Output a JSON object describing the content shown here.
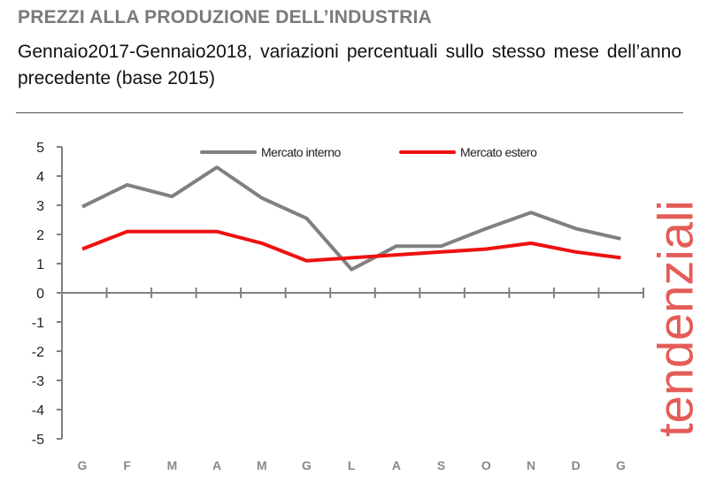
{
  "header": {
    "title": "PREZZI ALLA PRODUZIONE DELL’INDUSTRIA",
    "subtitle": "Gennaio2017-Gennaio2018, variazioni percentuali sullo stesso mese dell’anno precedente (base 2015)",
    "side_label": "tendenziali"
  },
  "chart_data": {
    "type": "line",
    "categories": [
      "G",
      "F",
      "M",
      "A",
      "M",
      "G",
      "L",
      "A",
      "S",
      "O",
      "N",
      "D",
      "G"
    ],
    "ylim": [
      -5,
      5
    ],
    "yticks": [
      5,
      4,
      3,
      2,
      1,
      0,
      -1,
      -2,
      -3,
      -4,
      -5
    ],
    "grid": false,
    "legend": "top",
    "series": [
      {
        "name": "Mercato interno",
        "color": "#808080",
        "values": [
          2.95,
          3.7,
          3.3,
          4.3,
          3.25,
          2.55,
          0.8,
          1.6,
          1.6,
          2.2,
          2.75,
          2.2,
          1.85
        ]
      },
      {
        "name": "Mercato estero",
        "color": "#ee1111",
        "values": [
          1.5,
          2.1,
          2.1,
          2.1,
          1.7,
          1.1,
          1.2,
          1.3,
          1.4,
          1.5,
          1.7,
          1.4,
          1.2
        ]
      }
    ]
  }
}
